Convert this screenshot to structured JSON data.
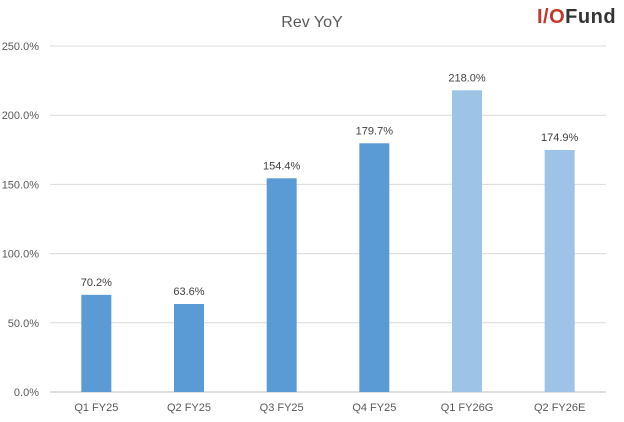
{
  "logo": {
    "prefix": "I/O",
    "suffix": "Fund"
  },
  "colors": {
    "actual": "#5b9bd5",
    "guidance": "#9dc3e6",
    "grid": "#d9d9d9",
    "axis": "#bfbfbf"
  },
  "chart_data": {
    "type": "bar",
    "title": "Rev YoY",
    "categories": [
      "Q1 FY25",
      "Q2 FY25",
      "Q3 FY25",
      "Q4 FY25",
      "Q1 FY26G",
      "Q2 FY26E"
    ],
    "values": [
      70.2,
      63.6,
      154.4,
      179.7,
      218.0,
      174.9
    ],
    "data_labels": [
      "70.2%",
      "63.6%",
      "154.4%",
      "179.7%",
      "218.0%",
      "174.9%"
    ],
    "bar_styles": [
      "actual",
      "actual",
      "actual",
      "actual",
      "guidance",
      "guidance"
    ],
    "ylim": [
      0,
      250
    ],
    "yticks": [
      0,
      50,
      100,
      150,
      200,
      250
    ],
    "ytick_labels": [
      "0.0%",
      "50.0%",
      "100.0%",
      "150.0%",
      "200.0%",
      "250.0%"
    ],
    "xlabel": "",
    "ylabel": "",
    "grid": true,
    "legend": false
  }
}
